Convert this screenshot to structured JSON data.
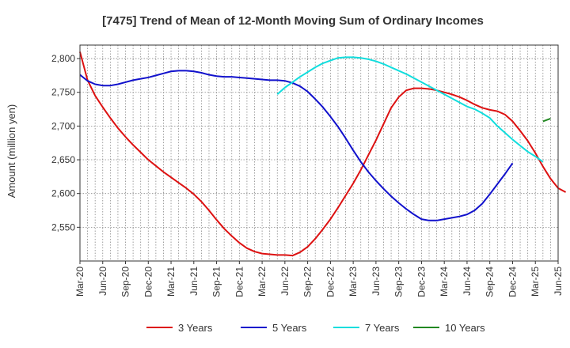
{
  "chart_data": {
    "type": "line",
    "title": "[7475]  Trend of Mean of 12-Month Moving Sum of Ordinary Incomes",
    "xlabel": "",
    "ylabel": "Amount (million yen)",
    "ylim": [
      2500,
      2820
    ],
    "yticks": [
      2550,
      2600,
      2650,
      2700,
      2750,
      2800
    ],
    "ytick_labels": [
      "2,550",
      "2,600",
      "2,650",
      "2,700",
      "2,750",
      "2,800"
    ],
    "x_tick_labels": [
      "Mar-20",
      "Jun-20",
      "Sep-20",
      "Dec-20",
      "Mar-21",
      "Jun-21",
      "Sep-21",
      "Dec-21",
      "Mar-22",
      "Jun-22",
      "Sep-22",
      "Dec-22",
      "Mar-23",
      "Jun-23",
      "Sep-23",
      "Dec-23",
      "Mar-24",
      "Jun-24",
      "Sep-24",
      "Dec-24",
      "Mar-25",
      "Jun-25"
    ],
    "x_start": "Mar-20",
    "x_months": 63,
    "grid": true,
    "legend_position": "bottom",
    "series": [
      {
        "name": "3 Years",
        "color": "#dd1111",
        "start_index": 0,
        "values": [
          2810,
          2768,
          2745,
          2728,
          2712,
          2697,
          2684,
          2672,
          2661,
          2650,
          2641,
          2632,
          2624,
          2616,
          2608,
          2599,
          2588,
          2575,
          2561,
          2548,
          2537,
          2527,
          2519,
          2514,
          2511,
          2510,
          2509,
          2509,
          2508,
          2513,
          2521,
          2533,
          2547,
          2562,
          2579,
          2597,
          2615,
          2635,
          2657,
          2679,
          2703,
          2727,
          2743,
          2753,
          2756,
          2756,
          2755,
          2753,
          2750,
          2747,
          2743,
          2738,
          2732,
          2727,
          2724,
          2722,
          2717,
          2707,
          2693,
          2678,
          2660,
          2640,
          2622,
          2608,
          2602
        ]
      },
      {
        "name": "5 Years",
        "color": "#1111cc",
        "start_index": 0,
        "values": [
          2776,
          2767,
          2762,
          2760,
          2760,
          2762,
          2765,
          2768,
          2770,
          2772,
          2775,
          2778,
          2781,
          2782,
          2782,
          2781,
          2779,
          2776,
          2774,
          2773,
          2773,
          2772,
          2771,
          2770,
          2769,
          2768,
          2768,
          2767,
          2764,
          2759,
          2751,
          2740,
          2728,
          2714,
          2699,
          2682,
          2664,
          2647,
          2632,
          2619,
          2607,
          2596,
          2586,
          2577,
          2569,
          2562,
          2560,
          2560,
          2562,
          2564,
          2566,
          2569,
          2575,
          2585,
          2599,
          2614,
          2629,
          2645
        ]
      },
      {
        "name": "7 Years",
        "color": "#11dddd",
        "start_index": 26,
        "values": [
          2747,
          2757,
          2765,
          2773,
          2780,
          2787,
          2793,
          2797,
          2801,
          2802,
          2802,
          2801,
          2799,
          2796,
          2792,
          2787,
          2782,
          2777,
          2771,
          2765,
          2759,
          2753,
          2747,
          2741,
          2735,
          2729,
          2725,
          2719,
          2712,
          2700,
          2690,
          2680,
          2671,
          2662,
          2655,
          2647
        ]
      },
      {
        "name": "10 Years",
        "color": "#228822",
        "start_index": 61,
        "values": [
          2707,
          2711
        ]
      }
    ]
  }
}
